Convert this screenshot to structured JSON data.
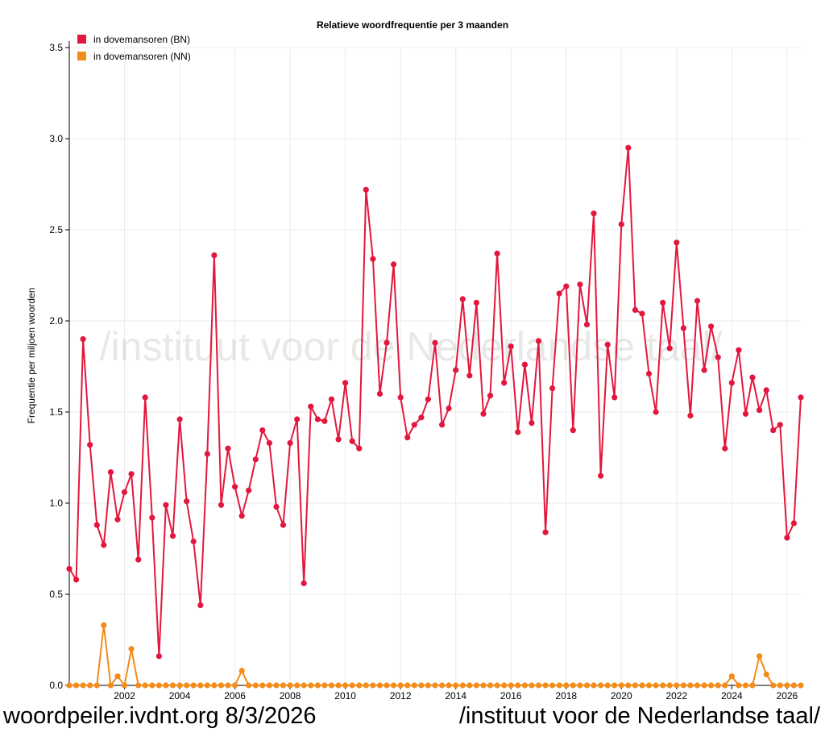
{
  "footer": {
    "left_text": "woordpeiler.ivdnt.org 8/3/2026",
    "right_text": "/instituut voor de Nederlandse taal/"
  },
  "chart_data": {
    "type": "line",
    "title": "Relatieve woordfrequentie per 3 maanden",
    "xlabel": "",
    "ylabel": "Frequentie per miljoen woorden",
    "watermark": "/instituut voor de Nederlandse taal/",
    "legend_position": "top-left",
    "grid": true,
    "xlim": [
      2000.0,
      2026.5
    ],
    "ylim": [
      0,
      3.5
    ],
    "x_ticks": [
      "2002",
      "2004",
      "2006",
      "2008",
      "2010",
      "2012",
      "2014",
      "2016",
      "2018",
      "2020",
      "2022",
      "2024",
      "2026"
    ],
    "y_ticks": [
      "0.0",
      "0.5",
      "1.0",
      "1.5",
      "2.0",
      "2.5",
      "3.0",
      "3.5"
    ],
    "x_start": 2000.0,
    "x_step": 0.25,
    "series": [
      {
        "name": "in dovemansoren (BN)",
        "color": "#e3173d",
        "values": [
          0.64,
          0.58,
          1.9,
          1.32,
          0.88,
          0.77,
          1.17,
          0.91,
          1.06,
          1.16,
          0.69,
          1.58,
          0.92,
          0.16,
          0.99,
          0.82,
          1.46,
          1.01,
          0.79,
          0.44,
          1.27,
          2.36,
          0.99,
          1.3,
          1.09,
          0.93,
          1.07,
          1.24,
          1.4,
          1.33,
          0.98,
          0.88,
          1.33,
          1.46,
          0.56,
          1.53,
          1.46,
          1.45,
          1.57,
          1.35,
          1.66,
          1.34,
          1.3,
          2.72,
          2.34,
          1.6,
          1.88,
          2.31,
          1.58,
          1.36,
          1.43,
          1.47,
          1.57,
          1.88,
          1.43,
          1.52,
          1.73,
          2.12,
          1.7,
          2.1,
          1.49,
          1.59,
          2.37,
          1.66,
          1.86,
          1.39,
          1.76,
          1.44,
          1.89,
          0.84,
          1.63,
          2.15,
          2.19,
          1.4,
          2.2,
          1.98,
          2.59,
          1.15,
          1.87,
          1.58,
          2.53,
          2.95,
          2.06,
          2.04,
          1.71,
          1.5,
          2.1,
          1.85,
          2.43,
          1.96,
          1.48,
          2.11,
          1.73,
          1.97,
          1.8,
          1.3,
          1.66,
          1.84,
          1.49,
          1.69,
          1.51,
          1.62,
          1.4,
          1.43,
          0.81,
          0.89,
          1.58
        ]
      },
      {
        "name": "in dovemansoren (NN)",
        "color": "#f28c1b",
        "values": [
          0,
          0,
          0,
          0,
          0,
          0.33,
          0,
          0.05,
          0,
          0.2,
          0,
          0,
          0,
          0,
          0,
          0,
          0,
          0,
          0,
          0,
          0,
          0,
          0,
          0,
          0,
          0.08,
          0,
          0,
          0,
          0,
          0,
          0,
          0,
          0,
          0,
          0,
          0,
          0,
          0,
          0,
          0,
          0,
          0,
          0,
          0,
          0,
          0,
          0,
          0,
          0,
          0,
          0,
          0,
          0,
          0,
          0,
          0,
          0,
          0,
          0,
          0,
          0,
          0,
          0,
          0,
          0,
          0,
          0,
          0,
          0,
          0,
          0,
          0,
          0,
          0,
          0,
          0,
          0,
          0,
          0,
          0,
          0,
          0,
          0,
          0,
          0,
          0,
          0,
          0,
          0,
          0,
          0,
          0,
          0,
          0,
          0,
          0.05,
          0,
          0,
          0,
          0.16,
          0.06,
          0,
          0,
          0,
          0,
          0
        ]
      }
    ]
  }
}
